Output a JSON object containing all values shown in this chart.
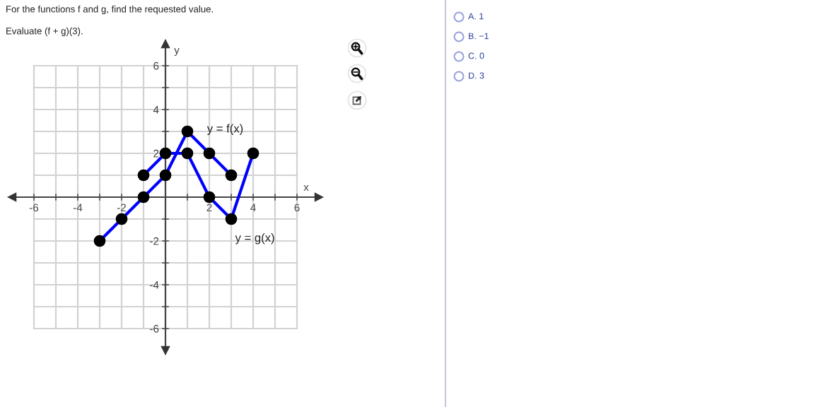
{
  "chart_data": {
    "type": "line",
    "title": "For the functions f and g, find the requested value.",
    "subtitle": "Evaluate (f + g)(3).",
    "xlabel": "x",
    "ylabel": "y",
    "series": [
      {
        "name": "y = f(x)",
        "color": "#0000ff",
        "x": [
          -3,
          -2,
          -1,
          0,
          1,
          2,
          3
        ],
        "values": [
          -2,
          -1,
          0,
          1,
          3,
          2,
          1
        ]
      },
      {
        "name": "y = g(x)",
        "color": "#0000ff",
        "x": [
          -1,
          0,
          1,
          2,
          3,
          4
        ],
        "values": [
          1,
          2,
          2,
          0,
          -1,
          2
        ]
      }
    ],
    "xlim": [
      -7,
      7
    ],
    "ylim": [
      -7,
      7
    ],
    "xticks": [
      -6,
      {
        "value": -5,
        "label": null
      },
      -4,
      {
        "value": -3,
        "label": null
      },
      -2,
      {
        "value": -1,
        "label": null
      },
      {
        "value": 0,
        "label": null
      },
      {
        "value": 1,
        "label": null
      },
      2,
      {
        "value": 3,
        "label": null
      },
      4,
      {
        "value": 5,
        "label": null
      },
      6
    ],
    "yticks": [
      -6,
      {
        "value": -5,
        "label": null
      },
      -4,
      {
        "value": -3,
        "label": null
      },
      -2,
      {
        "value": -1,
        "label": null
      },
      {
        "value": 0,
        "label": null
      },
      {
        "value": 1,
        "label": null
      },
      2,
      {
        "value": 3,
        "label": null
      },
      4,
      {
        "value": 5,
        "label": null
      },
      6
    ],
    "grid": true,
    "marker": "circle",
    "line_style": "solid",
    "annotations": [
      "A. 1",
      "B. −1",
      "C. 0",
      "D. 3"
    ]
  }
}
